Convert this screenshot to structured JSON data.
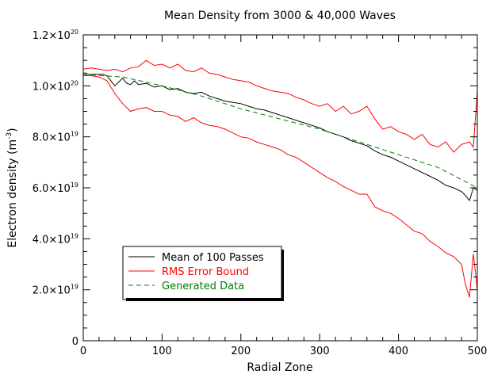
{
  "chart_data": {
    "type": "line",
    "title": "Mean Density from 3000 & 40,000 Waves",
    "xlabel": "Radial Zone",
    "ylabel": "Electron density (m",
    "ylabel_exp": "-3",
    "ylabel_close": ")",
    "xlim": [
      0,
      500
    ],
    "ylim": [
      0,
      1.2e+20
    ],
    "x_ticks": [
      {
        "value": 0,
        "label": "0"
      },
      {
        "value": 100,
        "label": "100"
      },
      {
        "value": 200,
        "label": "200"
      },
      {
        "value": 300,
        "label": "300"
      },
      {
        "value": 400,
        "label": "400"
      },
      {
        "value": 500,
        "label": "500"
      }
    ],
    "y_ticks": [
      {
        "value": 0,
        "mant": "0",
        "exp": ""
      },
      {
        "value": 2e+19,
        "mant": "2.0×10",
        "exp": "19"
      },
      {
        "value": 4e+19,
        "mant": "4.0×10",
        "exp": "19"
      },
      {
        "value": 6e+19,
        "mant": "6.0×10",
        "exp": "19"
      },
      {
        "value": 8e+19,
        "mant": "8.0×10",
        "exp": "19"
      },
      {
        "value": 1e+20,
        "mant": "1.0×10",
        "exp": "20"
      },
      {
        "value": 1.2e+20,
        "mant": "1.2×10",
        "exp": "20"
      }
    ],
    "x_minor_step": 20,
    "y_minor_step": 5e+18,
    "legend_position": "bottom-left",
    "series": [
      {
        "name": "Mean of 100 Passes",
        "color": "#000000",
        "style": "solid",
        "x": [
          0,
          10,
          20,
          25,
          30,
          35,
          40,
          45,
          50,
          55,
          60,
          65,
          70,
          80,
          90,
          100,
          110,
          120,
          130,
          140,
          150,
          160,
          170,
          180,
          190,
          200,
          210,
          220,
          230,
          240,
          250,
          260,
          270,
          280,
          290,
          300,
          310,
          320,
          330,
          340,
          350,
          360,
          370,
          380,
          390,
          400,
          410,
          420,
          430,
          440,
          450,
          460,
          470,
          480,
          485,
          490,
          495,
          500
        ],
        "values": [
          1.045e+20,
          1.045e+20,
          1.045e+20,
          1.045e+20,
          1.04e+20,
          1.02e+20,
          1e+20,
          1.015e+20,
          1.03e+20,
          1.01e+20,
          1.005e+20,
          1.02e+20,
          1.005e+20,
          1.01e+20,
          9.95e+19,
          1e+20,
          9.85e+19,
          9.9e+19,
          9.75e+19,
          9.7e+19,
          9.75e+19,
          9.6e+19,
          9.5e+19,
          9.4e+19,
          9.35e+19,
          9.3e+19,
          9.2e+19,
          9.1e+19,
          9.05e+19,
          8.95e+19,
          8.85e+19,
          8.75e+19,
          8.65e+19,
          8.55e+19,
          8.45e+19,
          8.35e+19,
          8.2e+19,
          8.1e+19,
          8e+19,
          7.85e+19,
          7.75e+19,
          7.65e+19,
          7.45e+19,
          7.3e+19,
          7.2e+19,
          7.05e+19,
          6.9e+19,
          6.75e+19,
          6.6e+19,
          6.45e+19,
          6.3e+19,
          6.1e+19,
          6e+19,
          5.85e+19,
          5.7e+19,
          5.5e+19,
          6e+19,
          5.9e+19
        ]
      },
      {
        "name": "RMS Error Bound",
        "color": "#ff0000",
        "style": "solid",
        "x": [
          0,
          10,
          20,
          30,
          40,
          50,
          60,
          70,
          80,
          90,
          100,
          110,
          120,
          130,
          140,
          150,
          160,
          170,
          180,
          190,
          200,
          210,
          220,
          230,
          240,
          250,
          260,
          270,
          280,
          290,
          300,
          310,
          320,
          330,
          340,
          350,
          360,
          370,
          380,
          390,
          400,
          410,
          420,
          430,
          440,
          450,
          460,
          470,
          480,
          490,
          495,
          500
        ],
        "values": [
          1.065e+20,
          1.07e+20,
          1.065e+20,
          1.06e+20,
          1.065e+20,
          1.055e+20,
          1.07e+20,
          1.075e+20,
          1.1e+20,
          1.08e+20,
          1.085e+20,
          1.07e+20,
          1.085e+20,
          1.06e+20,
          1.055e+20,
          1.07e+20,
          1.05e+20,
          1.045e+20,
          1.035e+20,
          1.025e+20,
          1.02e+20,
          1.015e+20,
          1e+20,
          9.9e+19,
          9.8e+19,
          9.75e+19,
          9.7e+19,
          9.55e+19,
          9.45e+19,
          9.3e+19,
          9.2e+19,
          9.3e+19,
          9e+19,
          9.2e+19,
          8.9e+19,
          9e+19,
          9.2e+19,
          8.7e+19,
          8.3e+19,
          8.4e+19,
          8.2e+19,
          8.1e+19,
          7.9e+19,
          8.1e+19,
          7.7e+19,
          7.6e+19,
          7.8e+19,
          7.4e+19,
          7.7e+19,
          7.8e+19,
          7.6e+19,
          9.8e+19
        ]
      },
      {
        "name": "RMS Error Bound (lower)",
        "color": "#ff0000",
        "style": "solid",
        "x": [
          0,
          10,
          20,
          30,
          40,
          50,
          60,
          70,
          80,
          90,
          100,
          110,
          120,
          130,
          140,
          150,
          160,
          170,
          180,
          190,
          200,
          210,
          220,
          230,
          240,
          250,
          260,
          270,
          280,
          290,
          300,
          310,
          320,
          330,
          340,
          350,
          360,
          370,
          380,
          390,
          400,
          410,
          420,
          430,
          440,
          450,
          460,
          470,
          480,
          485,
          490,
          495,
          500
        ],
        "values": [
          1.04e+20,
          1.04e+20,
          1.035e+20,
          1.02e+20,
          9.7e+19,
          9.3e+19,
          9e+19,
          9.1e+19,
          9.15e+19,
          9e+19,
          9e+19,
          8.85e+19,
          8.8e+19,
          8.6e+19,
          8.75e+19,
          8.55e+19,
          8.45e+19,
          8.4e+19,
          8.3e+19,
          8.15e+19,
          8e+19,
          7.95e+19,
          7.8e+19,
          7.7e+19,
          7.6e+19,
          7.5e+19,
          7.3e+19,
          7.2e+19,
          7e+19,
          6.8e+19,
          6.6e+19,
          6.4e+19,
          6.25e+19,
          6.05e+19,
          5.9e+19,
          5.75e+19,
          5.75e+19,
          5.25e+19,
          5.1e+19,
          5e+19,
          4.8e+19,
          4.55e+19,
          4.3e+19,
          4.2e+19,
          3.9e+19,
          3.7e+19,
          3.45e+19,
          3.3e+19,
          3e+19,
          2.2e+19,
          1.7e+19,
          3.4e+19,
          2e+19
        ]
      },
      {
        "name": "Generated Data",
        "color": "#008000",
        "style": "dashed",
        "x": [
          0,
          50,
          100,
          150,
          200,
          250,
          300,
          350,
          400,
          450,
          500
        ],
        "values": [
          1.045e+20,
          1.035e+20,
          1e+20,
          9.6e+19,
          9.1e+19,
          8.7e+19,
          8.3e+19,
          7.8e+19,
          7.3e+19,
          6.8e+19,
          6e+19
        ]
      }
    ],
    "legend": [
      {
        "label": "Mean of 100 Passes",
        "color": "#000000",
        "text_color": "#000000",
        "style": "solid"
      },
      {
        "label": "RMS Error Bound",
        "color": "#ff0000",
        "text_color": "#ff0000",
        "style": "solid"
      },
      {
        "label": "Generated Data",
        "color": "#008000",
        "text_color": "#008000",
        "style": "dashed"
      }
    ]
  }
}
